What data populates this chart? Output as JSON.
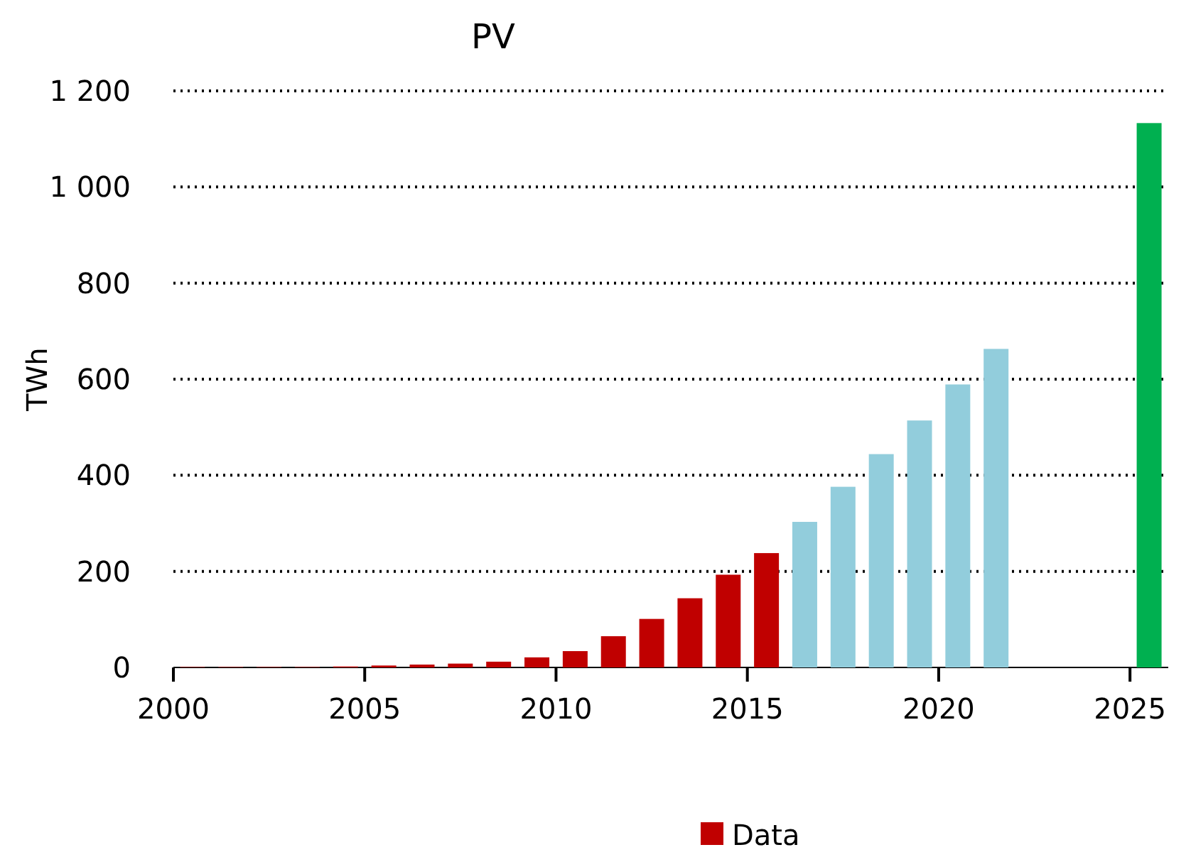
{
  "chart_data": {
    "type": "bar",
    "title": "PV",
    "ylabel": "TWh",
    "xlim": [
      2000,
      2026
    ],
    "xticks": [
      2000,
      2005,
      2010,
      2015,
      2020,
      2025
    ],
    "ylim": [
      0,
      1200
    ],
    "yticks": [
      0,
      200,
      400,
      600,
      800,
      {
        "value": 1000,
        "label": "1 000"
      },
      {
        "value": 1200,
        "label": "1 200"
      }
    ],
    "grid": "y",
    "legend": "bottom",
    "series": [
      {
        "name": "Data",
        "color": "#c00000",
        "x": [
          2000.5,
          2001.5,
          2002.5,
          2003.5,
          2004.5,
          2005.5,
          2006.5,
          2007.5,
          2008.5,
          2009.5,
          2010.5,
          2011.5,
          2012.5,
          2013.5,
          2014.5,
          2015.5
        ],
        "values": [
          1,
          1,
          1,
          1,
          2,
          4,
          6,
          8,
          12,
          21,
          34,
          65,
          101,
          144,
          193,
          238
        ]
      },
      {
        "color": "#92cddc",
        "x": [
          2016.5,
          2017.5,
          2018.5,
          2019.5,
          2020.5,
          2021.5
        ],
        "values": [
          303,
          376,
          444,
          514,
          589,
          663
        ]
      },
      {
        "color": "#00b050",
        "x": [
          2025.5
        ],
        "values": [
          1133
        ]
      }
    ]
  }
}
